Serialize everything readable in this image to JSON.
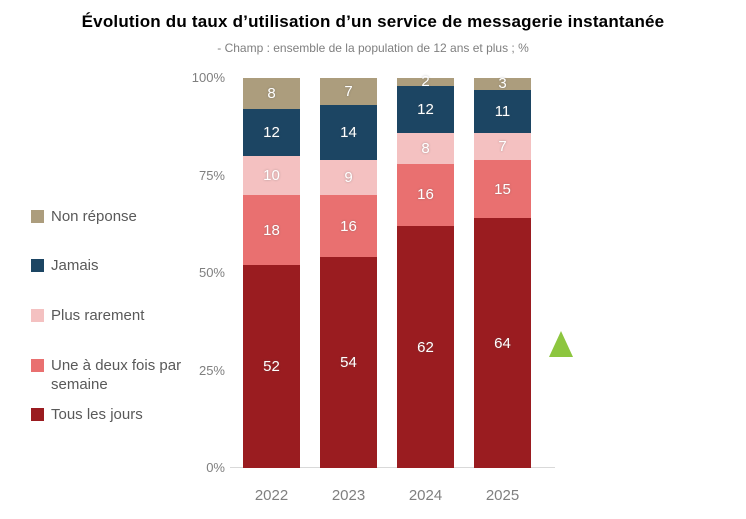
{
  "title": "Évolution du taux d’utilisation d’un service de messagerie instantanée",
  "subtitle": "- Champ : ensemble de la population de 12 ans et plus ; %",
  "colors": {
    "axis_text": "#7F7F7F",
    "legend_text": "#595959",
    "axis_line": "#D9D9D9",
    "value_label": "#FFFFFF",
    "triangle": "#8DC63F"
  },
  "chart_data": {
    "type": "bar",
    "stacked": true,
    "title": "Évolution du taux d’utilisation d’un service de messagerie instantanée",
    "subtitle": "- Champ : ensemble de la population de 12 ans et plus ; %",
    "categories": [
      "2022",
      "2023",
      "2024",
      "2025"
    ],
    "series": [
      {
        "name": "Non réponse",
        "color": "#AC9D7D",
        "values": [
          8,
          7,
          2,
          3
        ]
      },
      {
        "name": "Jamais",
        "color": "#1C4563",
        "values": [
          12,
          14,
          12,
          11
        ]
      },
      {
        "name": "Plus rarement",
        "color": "#F4C1C1",
        "values": [
          10,
          9,
          8,
          7
        ]
      },
      {
        "name": "Une à deux fois par semaine",
        "color": "#E97070",
        "values": [
          18,
          16,
          16,
          15
        ]
      },
      {
        "name": "Tous les jours",
        "color": "#9A1C20",
        "values": [
          52,
          54,
          62,
          64
        ]
      }
    ],
    "y_ticks": [
      "100%",
      "75%",
      "50%",
      "25%",
      "0%"
    ],
    "ylim": [
      0,
      100
    ],
    "grid": false,
    "legend_position": "left",
    "data_labels": "inside-white",
    "annotation": {
      "type": "triangle-up",
      "color": "#8DC63F",
      "position": "right-of-2025-bar"
    }
  }
}
